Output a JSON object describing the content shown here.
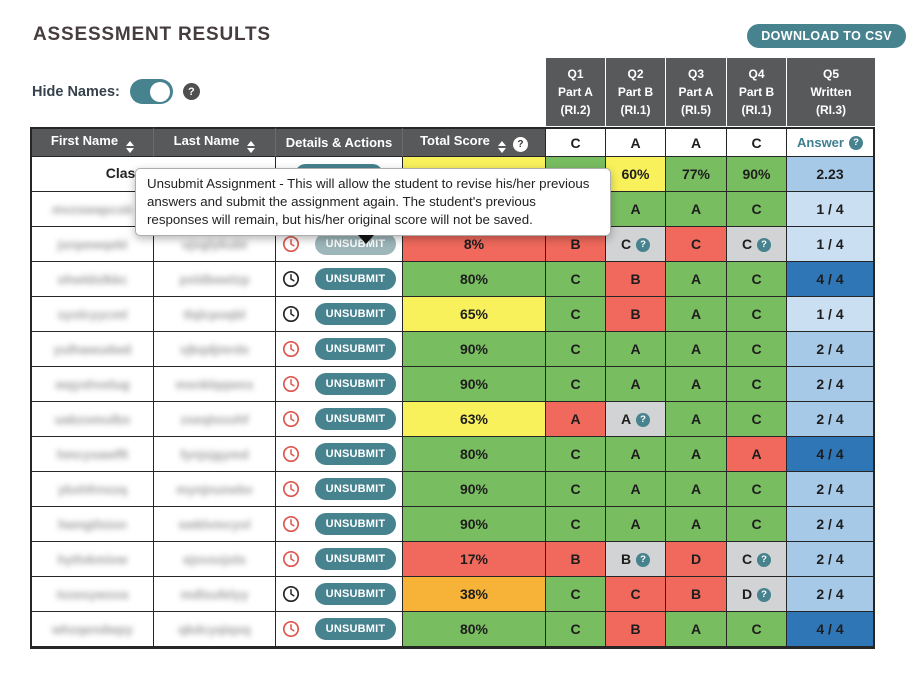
{
  "page": {
    "title": "ASSESSMENT RESULTS",
    "download_button": "DOWNLOAD TO CSV",
    "hide_names_label": "Hide Names:",
    "help_icon": "?"
  },
  "question_headers": [
    {
      "line1": "Q1",
      "line2": "Part A",
      "line3": "(RI.2)"
    },
    {
      "line1": "Q2",
      "line2": "Part B",
      "line3": "(RI.1)"
    },
    {
      "line1": "Q3",
      "line2": "Part A",
      "line3": "(RI.5)"
    },
    {
      "line1": "Q4",
      "line2": "Part B",
      "line3": "(RI.1)"
    },
    {
      "line1": "Q5",
      "line2": "Written",
      "line3": "(RI.3)"
    }
  ],
  "tooltip": {
    "text": "Unsubmit Assignment - This will allow the student to revise his/her previous answers and submit the assignment again. The student's previous responses will remain, but his/her original score will not be saved."
  },
  "table": {
    "columns": [
      "First Name",
      "Last Name",
      "Details & Actions",
      "Total Score"
    ],
    "answer_key": [
      "C",
      "A",
      "A",
      "C"
    ],
    "answer_header": "Answer",
    "unsubmit_label": "UNSUBMIT",
    "average_row": {
      "name": "Class Average",
      "score": {
        "text": "",
        "color": "yellow"
      },
      "answers": [
        {
          "text": "",
          "color": "green",
          "help": false
        },
        {
          "text": "60%",
          "color": "yellow",
          "help": false
        },
        {
          "text": "77%",
          "color": "green",
          "help": false
        },
        {
          "text": "90%",
          "color": "green",
          "help": false
        }
      ],
      "written": {
        "text": "2.23",
        "color": "blue2"
      }
    },
    "rows": [
      {
        "first_name": "mvzswapcob",
        "last_name": "",
        "clock": "black",
        "button": "normal",
        "score": {
          "text": "",
          "color": "white"
        },
        "answers": [
          {
            "text": "",
            "color": "green",
            "help": false
          },
          {
            "text": "A",
            "color": "green",
            "help": false
          },
          {
            "text": "A",
            "color": "green",
            "help": false
          },
          {
            "text": "C",
            "color": "green",
            "help": false
          }
        ],
        "written": {
          "text": "1 / 4",
          "color": "blue1"
        }
      },
      {
        "first_name": "jsnpewqekl",
        "last_name": "ujsglykubt",
        "clock": "red",
        "button": "faded",
        "score": {
          "text": "8%",
          "color": "red"
        },
        "answers": [
          {
            "text": "B",
            "color": "red",
            "help": false
          },
          {
            "text": "C",
            "color": "gray",
            "help": true
          },
          {
            "text": "C",
            "color": "red",
            "help": false
          },
          {
            "text": "C",
            "color": "gray",
            "help": true
          }
        ],
        "written": {
          "text": "1 / 4",
          "color": "blue1"
        }
      },
      {
        "first_name": "ohwldslkkc",
        "last_name": "pxldbwelzp",
        "clock": "black",
        "button": "normal",
        "score": {
          "text": "80%",
          "color": "green"
        },
        "answers": [
          {
            "text": "C",
            "color": "green",
            "help": false
          },
          {
            "text": "B",
            "color": "red",
            "help": false
          },
          {
            "text": "A",
            "color": "green",
            "help": false
          },
          {
            "text": "C",
            "color": "green",
            "help": false
          }
        ],
        "written": {
          "text": "4 / 4",
          "color": "blue3"
        }
      },
      {
        "first_name": "syolcyycml",
        "last_name": "tlqlcpoqbl",
        "clock": "black",
        "button": "normal",
        "score": {
          "text": "65%",
          "color": "yellow"
        },
        "answers": [
          {
            "text": "C",
            "color": "green",
            "help": false
          },
          {
            "text": "B",
            "color": "red",
            "help": false
          },
          {
            "text": "A",
            "color": "green",
            "help": false
          },
          {
            "text": "C",
            "color": "green",
            "help": false
          }
        ],
        "written": {
          "text": "1 / 4",
          "color": "blue1"
        }
      },
      {
        "first_name": "yulhawudwd",
        "last_name": "vjkqdjmrdx",
        "clock": "red",
        "button": "normal",
        "score": {
          "text": "90%",
          "color": "green"
        },
        "answers": [
          {
            "text": "C",
            "color": "green",
            "help": false
          },
          {
            "text": "A",
            "color": "green",
            "help": false
          },
          {
            "text": "A",
            "color": "green",
            "help": false
          },
          {
            "text": "C",
            "color": "green",
            "help": false
          }
        ],
        "written": {
          "text": "2 / 4",
          "color": "blue2"
        }
      },
      {
        "first_name": "wqyshvelug",
        "last_name": "msnklqqwxs",
        "clock": "red",
        "button": "normal",
        "score": {
          "text": "90%",
          "color": "green"
        },
        "answers": [
          {
            "text": "C",
            "color": "green",
            "help": false
          },
          {
            "text": "A",
            "color": "green",
            "help": false
          },
          {
            "text": "A",
            "color": "green",
            "help": false
          },
          {
            "text": "C",
            "color": "green",
            "help": false
          }
        ],
        "written": {
          "text": "2 / 4",
          "color": "blue2"
        }
      },
      {
        "first_name": "uabzomulbx",
        "last_name": "zseqtvuvhf",
        "clock": "red",
        "button": "normal",
        "score": {
          "text": "63%",
          "color": "yellow"
        },
        "answers": [
          {
            "text": "A",
            "color": "red",
            "help": false
          },
          {
            "text": "A",
            "color": "gray",
            "help": true
          },
          {
            "text": "A",
            "color": "green",
            "help": false
          },
          {
            "text": "C",
            "color": "green",
            "help": false
          }
        ],
        "written": {
          "text": "2 / 4",
          "color": "blue2"
        }
      },
      {
        "first_name": "hmcyxawfft",
        "last_name": "fynjxjgymd",
        "clock": "red",
        "button": "normal",
        "score": {
          "text": "80%",
          "color": "green"
        },
        "answers": [
          {
            "text": "C",
            "color": "green",
            "help": false
          },
          {
            "text": "A",
            "color": "green",
            "help": false
          },
          {
            "text": "A",
            "color": "green",
            "help": false
          },
          {
            "text": "A",
            "color": "red",
            "help": false
          }
        ],
        "written": {
          "text": "4 / 4",
          "color": "blue3"
        }
      },
      {
        "first_name": "ybxhfrnxzq",
        "last_name": "mynjnunebv",
        "clock": "red",
        "button": "normal",
        "score": {
          "text": "90%",
          "color": "green"
        },
        "answers": [
          {
            "text": "C",
            "color": "green",
            "help": false
          },
          {
            "text": "A",
            "color": "green",
            "help": false
          },
          {
            "text": "A",
            "color": "green",
            "help": false
          },
          {
            "text": "C",
            "color": "green",
            "help": false
          }
        ],
        "written": {
          "text": "2 / 4",
          "color": "blue2"
        }
      },
      {
        "first_name": "hwngtlsion",
        "last_name": "swklvmcyvl",
        "clock": "red",
        "button": "normal",
        "score": {
          "text": "90%",
          "color": "green"
        },
        "answers": [
          {
            "text": "C",
            "color": "green",
            "help": false
          },
          {
            "text": "A",
            "color": "green",
            "help": false
          },
          {
            "text": "A",
            "color": "green",
            "help": false
          },
          {
            "text": "C",
            "color": "green",
            "help": false
          }
        ],
        "written": {
          "text": "2 / 4",
          "color": "blue2"
        }
      },
      {
        "first_name": "hytlvkmivw",
        "last_name": "ejovsxjols",
        "clock": "red",
        "button": "normal",
        "score": {
          "text": "17%",
          "color": "red"
        },
        "answers": [
          {
            "text": "B",
            "color": "red",
            "help": false
          },
          {
            "text": "B",
            "color": "gray",
            "help": true
          },
          {
            "text": "D",
            "color": "red",
            "help": false
          },
          {
            "text": "C",
            "color": "gray",
            "help": true
          }
        ],
        "written": {
          "text": "2 / 4",
          "color": "blue2"
        }
      },
      {
        "first_name": "tvzesywxxa",
        "last_name": "mdlsufelyy",
        "clock": "black",
        "button": "normal",
        "score": {
          "text": "38%",
          "color": "orange"
        },
        "answers": [
          {
            "text": "C",
            "color": "green",
            "help": false
          },
          {
            "text": "C",
            "color": "red",
            "help": false
          },
          {
            "text": "B",
            "color": "red",
            "help": false
          },
          {
            "text": "D",
            "color": "gray",
            "help": true
          }
        ],
        "written": {
          "text": "2 / 4",
          "color": "blue2"
        }
      },
      {
        "first_name": "whzqendwpy",
        "last_name": "qkdcyqiqxq",
        "clock": "red",
        "button": "normal",
        "score": {
          "text": "80%",
          "color": "green"
        },
        "answers": [
          {
            "text": "C",
            "color": "green",
            "help": false
          },
          {
            "text": "B",
            "color": "red",
            "help": false
          },
          {
            "text": "A",
            "color": "green",
            "help": false
          },
          {
            "text": "C",
            "color": "green",
            "help": false
          }
        ],
        "written": {
          "text": "4 / 4",
          "color": "blue3"
        }
      }
    ]
  },
  "colors": {
    "teal": "#47828f",
    "header_gray": "#58595b",
    "correct_green": "#79bd61",
    "incorrect_red": "#f0695c",
    "partial_yellow": "#f8f15b",
    "partial_orange": "#f6b337",
    "needs_grading_gray": "#d2d3d4",
    "written_light_blue": "#cbdff3",
    "written_medium_blue": "#a7c9e8",
    "written_dark_blue": "#2e76b5"
  }
}
